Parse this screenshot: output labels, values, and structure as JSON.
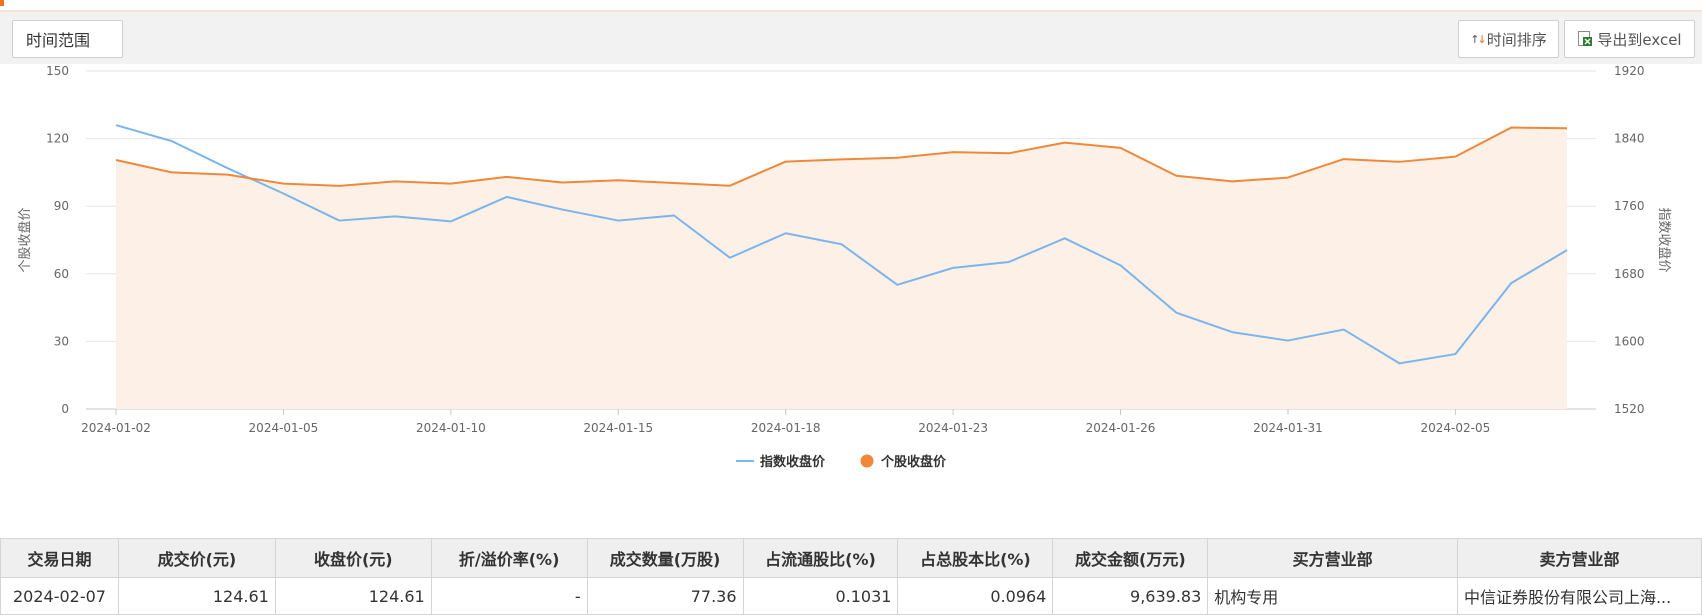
{
  "toolbar": {
    "range_label": "时间范围",
    "sort_label": "时间排序",
    "export_label": "导出到excel"
  },
  "chart_data": {
    "type": "line",
    "x": [
      "2024-01-02",
      "2024-01-03",
      "2024-01-04",
      "2024-01-05",
      "2024-01-08",
      "2024-01-09",
      "2024-01-10",
      "2024-01-11",
      "2024-01-12",
      "2024-01-15",
      "2024-01-16",
      "2024-01-17",
      "2024-01-18",
      "2024-01-19",
      "2024-01-22",
      "2024-01-23",
      "2024-01-24",
      "2024-01-25",
      "2024-01-26",
      "2024-01-29",
      "2024-01-30",
      "2024-01-31",
      "2024-02-01",
      "2024-02-02",
      "2024-02-05",
      "2024-02-06",
      "2024-02-07"
    ],
    "x_tick_labels": [
      "2024-01-02",
      "2024-01-05",
      "2024-01-10",
      "2024-01-15",
      "2024-01-18",
      "2024-01-23",
      "2024-01-26",
      "2024-01-31",
      "2024-02-05"
    ],
    "series": [
      {
        "name": "指数收盘价",
        "axis": "right",
        "color": "#7cb5ec",
        "values": [
          1856,
          1837,
          1805,
          1775,
          1743,
          1748,
          1742,
          1771,
          1756,
          1743,
          1749,
          1699,
          1728,
          1715,
          1667,
          1687,
          1694,
          1722,
          1690,
          1634,
          1611,
          1601,
          1614,
          1574,
          1585,
          1669,
          1708
        ]
      },
      {
        "name": "个股收盘价",
        "axis": "left",
        "color": "#f0883a",
        "area": true,
        "values": [
          110.5,
          105.0,
          104.0,
          100.0,
          99.0,
          101.0,
          100.0,
          103.0,
          100.5,
          101.5,
          100.3,
          99.1,
          109.8,
          110.8,
          111.5,
          114.0,
          113.5,
          118.2,
          115.9,
          103.5,
          101.0,
          102.7,
          110.9,
          109.7,
          112.0,
          124.9,
          124.61
        ]
      }
    ],
    "ylabel": "个股收盘价",
    "ylabel_right": "指数收盘价",
    "ylim": [
      0,
      150
    ],
    "yticks": [
      0,
      30,
      60,
      90,
      120,
      150
    ],
    "ylim_right": [
      1520,
      1920
    ],
    "yticks_right": [
      1520,
      1600,
      1680,
      1760,
      1840,
      1920
    ],
    "grid": true,
    "legend_position": "bottom"
  },
  "table": {
    "headers": [
      "交易日期",
      "成交价(元)",
      "收盘价(元)",
      "折/溢价率(%)",
      "成交数量(万股)",
      "占流通股比(%)",
      "占总股本比(%)",
      "成交金额(万元)",
      "买方营业部",
      "卖方营业部"
    ],
    "rows": [
      [
        "2024-02-07",
        "124.61",
        "124.61",
        "-",
        "77.36",
        "0.1031",
        "0.0964",
        "9,639.83",
        "机构专用",
        "中信证券股份有限公司上海..."
      ]
    ]
  }
}
